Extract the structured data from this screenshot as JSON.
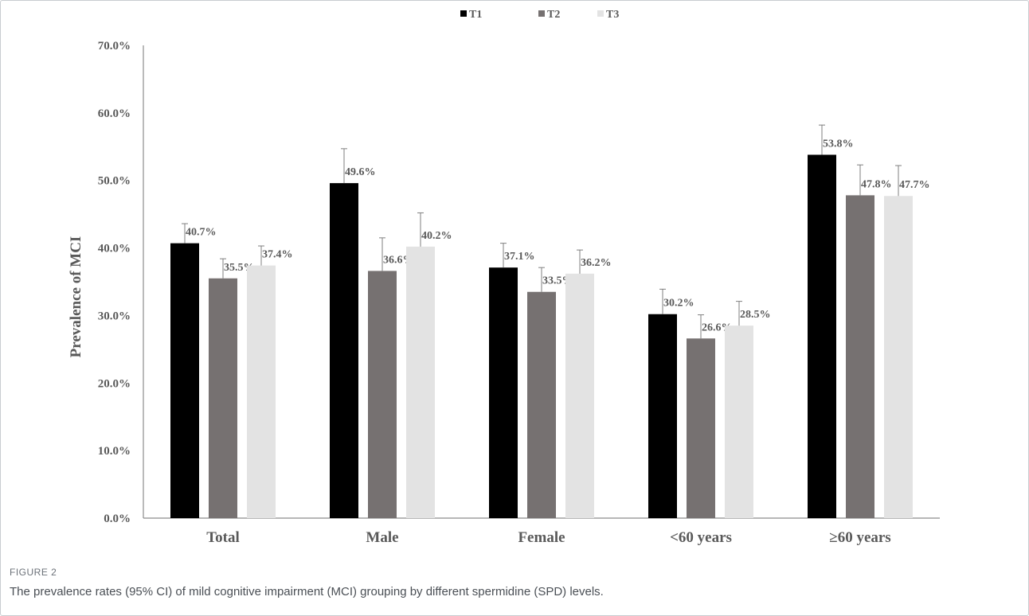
{
  "figure": {
    "label": "FIGURE 2",
    "caption": "The prevalence rates (95% CI) of mild cognitive impairment (MCI) grouping by different spermidine (SPD) levels."
  },
  "chart_data": {
    "type": "bar",
    "title": "",
    "ylabel": "Prevalence of MCI",
    "xlabel": "",
    "ylim": [
      0,
      70
    ],
    "yticks": [
      "0.0%",
      "10.0%",
      "20.0%",
      "30.0%",
      "40.0%",
      "50.0%",
      "60.0%",
      "70.0%"
    ],
    "categories": [
      "Total",
      "Male",
      "Female",
      "<60 years",
      "≥60 years"
    ],
    "legend_position": "top-center",
    "grid": false,
    "series": [
      {
        "name": "T1",
        "color": "#000000",
        "values": [
          40.7,
          49.6,
          37.1,
          30.2,
          53.8
        ],
        "ci_upper": [
          43.6,
          54.7,
          40.7,
          33.9,
          58.2
        ],
        "labels": [
          "40.7%",
          "49.6%",
          "37.1%",
          "30.2%",
          "53.8%"
        ]
      },
      {
        "name": "T2",
        "color": "#767171",
        "values": [
          35.5,
          36.6,
          33.5,
          26.6,
          47.8
        ],
        "ci_upper": [
          38.4,
          41.5,
          37.1,
          30.1,
          52.3
        ],
        "labels": [
          "35.5%",
          "36.6%",
          "33.5%",
          "26.6%",
          "47.8%"
        ]
      },
      {
        "name": "T3",
        "color": "#e3e3e3",
        "values": [
          37.4,
          40.2,
          36.2,
          28.5,
          47.7
        ],
        "ci_upper": [
          40.3,
          45.2,
          39.7,
          32.1,
          52.2
        ],
        "labels": [
          "37.4%",
          "40.2%",
          "36.2%",
          "28.5%",
          "47.7%"
        ]
      }
    ]
  }
}
